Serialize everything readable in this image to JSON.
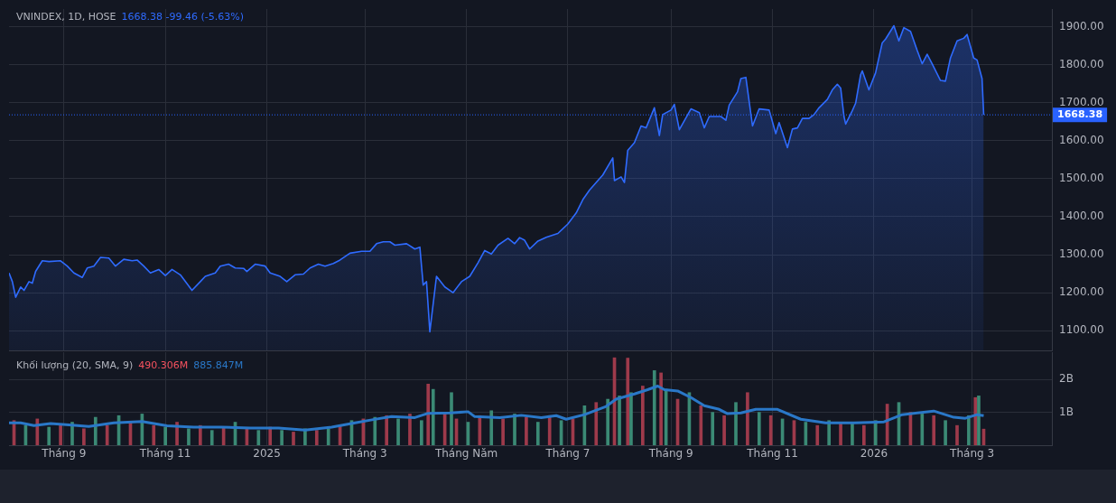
{
  "chart_data": [
    {
      "type": "area",
      "title": "VNINDEX, 1D, HOSE",
      "subtitle": "1668.38  -99.46 (-5.63%)",
      "color": "#2f6bff",
      "x": [
        "2024-07-30",
        "2024-08-01",
        "2024-08-03",
        "2024-08-06",
        "2024-08-08",
        "2024-08-11",
        "2024-08-13",
        "2024-08-15",
        "2024-08-19",
        "2024-08-23",
        "2024-08-30",
        "2024-09-03",
        "2024-09-07",
        "2024-09-12",
        "2024-09-15",
        "2024-09-19",
        "2024-09-23",
        "2024-09-28",
        "2024-10-02",
        "2024-10-07",
        "2024-10-12",
        "2024-10-15",
        "2024-10-19",
        "2024-10-23",
        "2024-10-28",
        "2024-11-01",
        "2024-11-05",
        "2024-11-10",
        "2024-11-17",
        "2024-11-22",
        "2024-11-25",
        "2024-12-01",
        "2024-12-04",
        "2024-12-09",
        "2024-12-13",
        "2024-12-18",
        "2024-12-20",
        "2024-12-25",
        "2024-12-31",
        "2025-01-03",
        "2025-01-09",
        "2025-01-13",
        "2025-01-18",
        "2025-01-23",
        "2025-01-27",
        "2025-02-01",
        "2025-02-05",
        "2025-02-10",
        "2025-02-14",
        "2025-02-20",
        "2025-02-27",
        "2025-03-04",
        "2025-03-08",
        "2025-03-12",
        "2025-03-16",
        "2025-03-19",
        "2025-03-26",
        "2025-03-31",
        "2025-04-03",
        "2025-04-05",
        "2025-04-07",
        "2025-04-09",
        "2025-04-13",
        "2025-04-18",
        "2025-04-23",
        "2025-04-28",
        "2025-05-03",
        "2025-05-08",
        "2025-05-12",
        "2025-05-16",
        "2025-05-20",
        "2025-05-26",
        "2025-05-30",
        "2025-06-02",
        "2025-06-05",
        "2025-06-08",
        "2025-06-13",
        "2025-06-18",
        "2025-06-25",
        "2025-07-01",
        "2025-07-06",
        "2025-07-10",
        "2025-07-14",
        "2025-07-19",
        "2025-07-22",
        "2025-07-28",
        "2025-07-29",
        "2025-08-02",
        "2025-08-04",
        "2025-08-06",
        "2025-08-10",
        "2025-08-14",
        "2025-08-17",
        "2025-08-22",
        "2025-08-25",
        "2025-08-27",
        "2025-09-01",
        "2025-09-03",
        "2025-09-06",
        "2025-09-13",
        "2025-09-18",
        "2025-09-21",
        "2025-09-24",
        "2025-10-01",
        "2025-10-04",
        "2025-10-06",
        "2025-10-11",
        "2025-10-13",
        "2025-10-16",
        "2025-10-20",
        "2025-10-24",
        "2025-10-30",
        "2025-11-03",
        "2025-11-05",
        "2025-11-10",
        "2025-11-13",
        "2025-11-16",
        "2025-11-19",
        "2025-11-23",
        "2025-11-26",
        "2025-11-29",
        "2025-12-04",
        "2025-12-07",
        "2025-12-10",
        "2025-12-12",
        "2025-12-14",
        "2025-12-15",
        "2025-12-19",
        "2025-12-21",
        "2025-12-24",
        "2025-12-25",
        "2025-12-29",
        "2026-01-02",
        "2026-01-06",
        "2026-01-08",
        "2026-01-13",
        "2026-01-16",
        "2026-01-19",
        "2026-01-23",
        "2026-01-27",
        "2026-01-30",
        "2026-02-02",
        "2026-02-05",
        "2026-02-10",
        "2026-02-13",
        "2026-02-16",
        "2026-02-20",
        "2026-02-24",
        "2026-02-26",
        "2026-03-02",
        "2026-03-04",
        "2026-03-07",
        "2026-03-08"
      ],
      "values": [
        1252,
        1229,
        1188,
        1215,
        1206,
        1229,
        1225,
        1256,
        1284,
        1282,
        1284,
        1270,
        1252,
        1240,
        1265,
        1270,
        1293,
        1291,
        1270,
        1288,
        1284,
        1286,
        1270,
        1252,
        1261,
        1245,
        1261,
        1247,
        1206,
        1229,
        1243,
        1252,
        1270,
        1275,
        1265,
        1264,
        1256,
        1275,
        1270,
        1252,
        1243,
        1229,
        1247,
        1249,
        1265,
        1275,
        1270,
        1277,
        1286,
        1304,
        1309,
        1309,
        1329,
        1334,
        1334,
        1325,
        1329,
        1315,
        1320,
        1220,
        1229,
        1097,
        1243,
        1215,
        1200,
        1229,
        1243,
        1279,
        1311,
        1302,
        1325,
        1343,
        1329,
        1345,
        1338,
        1315,
        1336,
        1346,
        1356,
        1381,
        1410,
        1445,
        1470,
        1495,
        1510,
        1555,
        1495,
        1505,
        1490,
        1575,
        1595,
        1639,
        1634,
        1687,
        1614,
        1669,
        1681,
        1696,
        1629,
        1684,
        1674,
        1634,
        1664,
        1664,
        1654,
        1694,
        1729,
        1764,
        1767,
        1639,
        1684,
        1681,
        1619,
        1648,
        1582,
        1631,
        1634,
        1659,
        1659,
        1669,
        1687,
        1709,
        1734,
        1749,
        1739,
        1664,
        1644,
        1679,
        1699,
        1774,
        1784,
        1734,
        1779,
        1858,
        1868,
        1903,
        1863,
        1898,
        1888,
        1838,
        1803,
        1828,
        1803,
        1759,
        1757,
        1818,
        1863,
        1870,
        1880,
        1818,
        1813,
        1764,
        1668.38
      ],
      "xlim": [
        "2024-07-30",
        "2026-04-18"
      ],
      "xticks": [
        {
          "value": "2024-09-01",
          "label": null
        },
        {
          "value": "2024-11-01",
          "label": null
        },
        {
          "value": "2025-01-01",
          "label": null
        },
        {
          "value": "2025-03-01",
          "label": null
        },
        {
          "value": "2025-05-01",
          "label": null
        },
        {
          "value": "2025-07-01",
          "label": null
        },
        {
          "value": "2025-09-01",
          "label": null
        },
        {
          "value": "2025-11-01",
          "label": null
        },
        {
          "value": "2026-01-01",
          "label": null
        },
        {
          "value": "2026-03-01",
          "label": null
        }
      ],
      "ylim": [
        1048,
        1947
      ],
      "yticks": [
        {
          "value": 1100,
          "label": "1100.00"
        },
        {
          "value": 1200,
          "label": "1200.00"
        },
        {
          "value": 1300,
          "label": "1300.00"
        },
        {
          "value": 1400,
          "label": "1400.00"
        },
        {
          "value": 1500,
          "label": "1500.00"
        },
        {
          "value": 1600,
          "label": "1600.00"
        },
        {
          "value": 1700,
          "label": "1700.00"
        },
        {
          "value": 1800,
          "label": "1800.00"
        },
        {
          "value": 1900,
          "label": "1900.00"
        }
      ],
      "ref_lines": [
        {
          "axis": "y",
          "value": 1668.38,
          "label": "1668.38",
          "color": "#2962ff",
          "line_style": "dotted"
        }
      ],
      "grid": true,
      "tick_labels": "y"
    },
    {
      "type": "bar",
      "title": "Khối lượng (20, SMA, 9)",
      "annotations": [
        "490.306M",
        "885.847M"
      ],
      "series": [
        {
          "x": [
            "2024-08-02",
            "2024-08-09",
            "2024-08-16",
            "2024-08-23",
            "2024-08-30",
            "2024-09-06",
            "2024-09-13",
            "2024-09-20",
            "2024-09-27",
            "2024-10-04",
            "2024-10-11",
            "2024-10-18",
            "2024-10-25",
            "2024-11-01",
            "2024-11-08",
            "2024-11-15",
            "2024-11-22",
            "2024-11-29",
            "2024-12-06",
            "2024-12-13",
            "2024-12-20",
            "2024-12-27",
            "2025-01-03",
            "2025-01-10",
            "2025-01-17",
            "2025-01-24",
            "2025-01-31",
            "2025-02-07",
            "2025-02-14",
            "2025-02-21",
            "2025-02-28",
            "2025-03-07",
            "2025-03-14",
            "2025-03-21",
            "2025-03-28",
            "2025-04-04",
            "2025-04-08",
            "2025-04-11",
            "2025-04-18",
            "2025-04-22",
            "2025-04-25",
            "2025-05-02",
            "2025-05-09",
            "2025-05-16",
            "2025-05-23",
            "2025-05-30",
            "2025-06-06",
            "2025-06-13",
            "2025-06-20",
            "2025-06-27",
            "2025-07-04",
            "2025-07-11",
            "2025-07-18",
            "2025-07-25",
            "2025-07-29",
            "2025-08-01",
            "2025-08-06",
            "2025-08-08",
            "2025-08-15",
            "2025-08-22",
            "2025-08-26",
            "2025-08-29",
            "2025-09-05",
            "2025-09-12",
            "2025-09-19",
            "2025-09-26",
            "2025-10-03",
            "2025-10-10",
            "2025-10-17",
            "2025-10-24",
            "2025-10-31",
            "2025-11-07",
            "2025-11-14",
            "2025-11-21",
            "2025-11-28",
            "2025-12-05",
            "2025-12-12",
            "2025-12-19",
            "2025-12-26",
            "2026-01-02",
            "2026-01-09",
            "2026-01-16",
            "2026-01-23",
            "2026-01-30",
            "2026-02-06",
            "2026-02-13",
            "2026-02-20",
            "2026-02-27",
            "2026-03-03",
            "2026-03-05",
            "2026-03-08"
          ],
          "values": [
            0.75,
            0.6,
            0.8,
            0.55,
            0.65,
            0.7,
            0.5,
            0.85,
            0.6,
            0.9,
            0.7,
            0.95,
            0.6,
            0.55,
            0.7,
            0.5,
            0.6,
            0.45,
            0.55,
            0.7,
            0.5,
            0.45,
            0.55,
            0.45,
            0.4,
            0.5,
            0.45,
            0.5,
            0.6,
            0.75,
            0.8,
            0.85,
            0.9,
            0.8,
            0.95,
            0.75,
            1.86,
            1.7,
            1.0,
            1.6,
            0.8,
            0.7,
            0.9,
            1.05,
            0.8,
            0.95,
            0.85,
            0.7,
            0.9,
            0.75,
            0.8,
            1.2,
            1.3,
            1.4,
            2.66,
            1.5,
            2.65,
            1.6,
            1.8,
            2.27,
            2.2,
            1.7,
            1.4,
            1.6,
            1.2,
            1.0,
            0.9,
            1.3,
            1.6,
            1.0,
            0.9,
            0.8,
            0.75,
            0.7,
            0.6,
            0.75,
            0.65,
            0.7,
            0.6,
            0.75,
            1.25,
            1.3,
            1.0,
            0.95,
            0.9,
            0.75,
            0.6,
            0.9,
            1.45,
            1.5,
            0.49
          ],
          "colors": [
            "#9e3a4b",
            "#3b8a75",
            "#9e3a4b",
            "#3b8a75",
            "#9e3a4b",
            "#3b8a75",
            "#9e3a4b",
            "#3b8a75",
            "#9e3a4b",
            "#3b8a75",
            "#9e3a4b",
            "#3b8a75",
            "#9e3a4b",
            "#3b8a75",
            "#9e3a4b",
            "#3b8a75",
            "#9e3a4b",
            "#3b8a75",
            "#9e3a4b",
            "#3b8a75",
            "#9e3a4b",
            "#3b8a75",
            "#9e3a4b",
            "#3b8a75",
            "#9e3a4b",
            "#3b8a75",
            "#9e3a4b",
            "#3b8a75",
            "#9e3a4b",
            "#3b8a75",
            "#9e3a4b",
            "#3b8a75",
            "#9e3a4b",
            "#3b8a75",
            "#9e3a4b",
            "#3b8a75",
            "#9e3a4b",
            "#3b8a75",
            "#9e3a4b",
            "#3b8a75",
            "#9e3a4b",
            "#3b8a75",
            "#9e3a4b",
            "#3b8a75",
            "#9e3a4b",
            "#3b8a75",
            "#9e3a4b",
            "#3b8a75",
            "#9e3a4b",
            "#3b8a75",
            "#9e3a4b",
            "#3b8a75",
            "#9e3a4b",
            "#3b8a75",
            "#9e3a4b",
            "#3b8a75",
            "#9e3a4b",
            "#3b8a75",
            "#9e3a4b",
            "#3b8a75",
            "#9e3a4b",
            "#3b8a75",
            "#9e3a4b",
            "#3b8a75",
            "#9e3a4b",
            "#3b8a75",
            "#9e3a4b",
            "#3b8a75",
            "#9e3a4b",
            "#3b8a75",
            "#9e3a4b",
            "#3b8a75",
            "#9e3a4b",
            "#3b8a75",
            "#9e3a4b",
            "#3b8a75",
            "#9e3a4b",
            "#3b8a75",
            "#9e3a4b",
            "#3b8a75",
            "#9e3a4b",
            "#3b8a75",
            "#9e3a4b",
            "#3b8a75",
            "#9e3a4b",
            "#3b8a75",
            "#9e3a4b",
            "#3b8a75",
            "#9e3a4b",
            "#3b8a75",
            "#9e3a4b"
          ]
        },
        {
          "type": "line",
          "color": "#2a78c8",
          "x": [
            "2024-07-30",
            "2024-08-06",
            "2024-08-14",
            "2024-08-24",
            "2024-09-04",
            "2024-09-16",
            "2024-10-01",
            "2024-10-18",
            "2024-11-02",
            "2024-11-18",
            "2024-12-05",
            "2024-12-22",
            "2025-01-08",
            "2025-01-24",
            "2025-02-09",
            "2025-02-23",
            "2025-03-06",
            "2025-03-17",
            "2025-03-31",
            "2025-04-08",
            "2025-04-21",
            "2025-05-02",
            "2025-05-06",
            "2025-05-21",
            "2025-06-03",
            "2025-06-15",
            "2025-06-24",
            "2025-06-30",
            "2025-07-11",
            "2025-07-24",
            "2025-07-30",
            "2025-08-10",
            "2025-08-18",
            "2025-08-24",
            "2025-08-28",
            "2025-09-05",
            "2025-09-13",
            "2025-09-21",
            "2025-09-30",
            "2025-10-05",
            "2025-10-13",
            "2025-10-22",
            "2025-11-04",
            "2025-11-18",
            "2025-12-03",
            "2025-12-20",
            "2026-01-07",
            "2026-01-18",
            "2026-02-06",
            "2026-02-18",
            "2026-02-25",
            "2026-03-04",
            "2026-03-08"
          ],
          "values": [
            0.68,
            0.68,
            0.6,
            0.66,
            0.62,
            0.57,
            0.68,
            0.72,
            0.59,
            0.55,
            0.55,
            0.52,
            0.52,
            0.46,
            0.55,
            0.68,
            0.78,
            0.87,
            0.84,
            0.97,
            0.98,
            1.02,
            0.87,
            0.84,
            0.91,
            0.84,
            0.9,
            0.79,
            0.93,
            1.18,
            1.4,
            1.56,
            1.69,
            1.8,
            1.69,
            1.65,
            1.45,
            1.2,
            1.09,
            0.96,
            0.98,
            1.09,
            1.09,
            0.79,
            0.68,
            0.68,
            0.71,
            0.93,
            1.04,
            0.85,
            0.82,
            0.93,
            0.9
          ]
        }
      ],
      "xlim": [
        "2024-07-30",
        "2026-04-18"
      ],
      "xticks": [
        {
          "value": "2024-09-01",
          "label": "Tháng 9"
        },
        {
          "value": "2024-11-01",
          "label": "Tháng 11"
        },
        {
          "value": "2025-01-01",
          "label": "2025"
        },
        {
          "value": "2025-03-01",
          "label": "Tháng 3"
        },
        {
          "value": "2025-05-01",
          "label": "Tháng Năm"
        },
        {
          "value": "2025-07-01",
          "label": "Tháng 7"
        },
        {
          "value": "2025-09-01",
          "label": "Tháng 9"
        },
        {
          "value": "2025-11-01",
          "label": "Tháng 11"
        },
        {
          "value": "2026-01-01",
          "label": "2026"
        },
        {
          "value": "2026-03-01",
          "label": "Tháng 3"
        }
      ],
      "ylim": [
        0,
        2.83
      ],
      "yticks": [
        {
          "value": 1,
          "label": "1B"
        },
        {
          "value": 2,
          "label": "2B"
        }
      ],
      "grid": true
    }
  ]
}
